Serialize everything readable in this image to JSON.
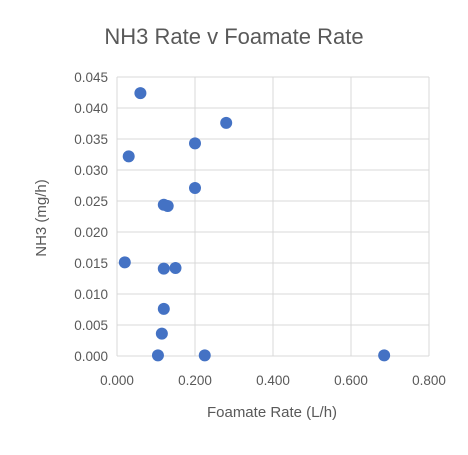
{
  "chart_data": {
    "type": "scatter",
    "title": "NH3 Rate v Foamate Rate",
    "xlabel": "Foamate Rate (L/h)",
    "ylabel": "NH3 (mg/h)",
    "xlim": [
      0,
      0.8
    ],
    "ylim": [
      0,
      0.045
    ],
    "x_ticks": [
      "0.000",
      "0.200",
      "0.400",
      "0.600",
      "0.800"
    ],
    "y_ticks": [
      "0.000",
      "0.005",
      "0.010",
      "0.015",
      "0.020",
      "0.025",
      "0.030",
      "0.035",
      "0.040",
      "0.045"
    ],
    "grid": true,
    "legend": "none",
    "marker_color": "#4472c4",
    "points": [
      {
        "x": 0.06,
        "y": 0.0424
      },
      {
        "x": 0.28,
        "y": 0.0376
      },
      {
        "x": 0.2,
        "y": 0.0343
      },
      {
        "x": 0.03,
        "y": 0.0322
      },
      {
        "x": 0.2,
        "y": 0.0271
      },
      {
        "x": 0.12,
        "y": 0.0244
      },
      {
        "x": 0.13,
        "y": 0.0242
      },
      {
        "x": 0.02,
        "y": 0.0151
      },
      {
        "x": 0.12,
        "y": 0.0141
      },
      {
        "x": 0.15,
        "y": 0.0142
      },
      {
        "x": 0.12,
        "y": 0.0076
      },
      {
        "x": 0.115,
        "y": 0.0036
      },
      {
        "x": 0.105,
        "y": 0.0001
      },
      {
        "x": 0.225,
        "y": 0.0001
      },
      {
        "x": 0.685,
        "y": 0.0001
      }
    ]
  }
}
